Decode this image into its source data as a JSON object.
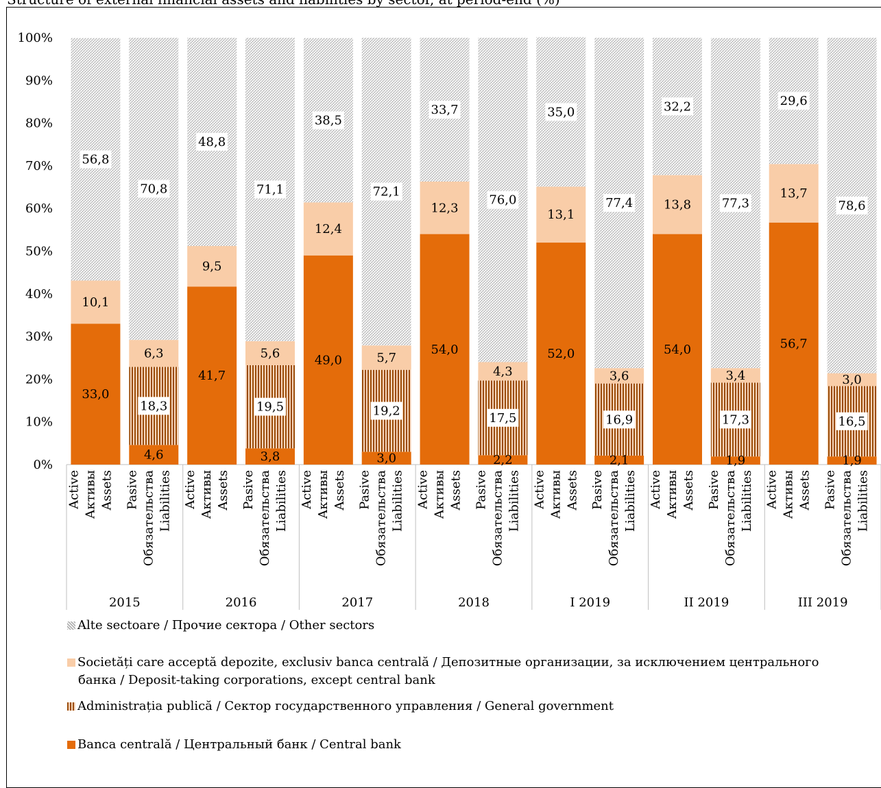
{
  "title": "Structure of external financial assets and liabilities by sector, at period-end (%)",
  "colors": {
    "central_bank": "#e46c0a",
    "general_government_stripe": "#9a4b06",
    "general_government_bg": "#f6d6bd",
    "deposit_taking": "#f9cda8",
    "other_sectors": "#d6d6d6"
  },
  "chart_data": {
    "type": "bar",
    "stacked": true,
    "ylim": [
      0,
      100
    ],
    "y_ticks": [
      "0%",
      "10%",
      "20%",
      "30%",
      "40%",
      "50%",
      "60%",
      "70%",
      "80%",
      "90%",
      "100%"
    ],
    "grid": false,
    "legend_position": "bottom",
    "groups": [
      "2015",
      "2016",
      "2017",
      "2018",
      "I 2019",
      "II 2019",
      "III 2019"
    ],
    "bar_labels": {
      "assets": [
        "Active",
        "Активы",
        "Assets"
      ],
      "liabilities": [
        "Pasive",
        "Обязательства",
        "Liabilities"
      ]
    },
    "categories": [
      "2015 Assets",
      "2015 Liabilities",
      "2016 Assets",
      "2016 Liabilities",
      "2017 Assets",
      "2017 Liabilities",
      "2018 Assets",
      "2018 Liabilities",
      "I 2019 Assets",
      "I 2019 Liabilities",
      "II 2019 Assets",
      "II 2019 Liabilities",
      "III 2019 Assets",
      "III 2019 Liabilities"
    ],
    "series": [
      {
        "name": "Banca centrală / Центральный банк / Central bank",
        "key": "central_bank",
        "values": [
          33.0,
          4.6,
          41.7,
          3.8,
          49.0,
          3.0,
          54.0,
          2.2,
          52.0,
          2.1,
          54.0,
          1.9,
          56.7,
          1.9
        ],
        "labels": [
          "33,0",
          "4,6",
          "41,7",
          "3,8",
          "49,0",
          "3,0",
          "54,0",
          "2,2",
          "52,0",
          "2,1",
          "54,0",
          "1,9",
          "56,7",
          "1,9"
        ]
      },
      {
        "name": "Administrația publică / Сектор государственного управления / General government",
        "key": "general_government",
        "values": [
          0,
          18.3,
          0,
          19.5,
          0,
          19.2,
          0,
          17.5,
          0,
          16.9,
          0,
          17.3,
          0,
          16.5
        ],
        "labels": [
          "",
          "18,3",
          "",
          "19,5",
          "",
          "19,2",
          "",
          "17,5",
          "",
          "16,9",
          "",
          "17,3",
          "",
          "16,5"
        ]
      },
      {
        "name": "Societăți care acceptă depozite, exclusiv banca centrală / Депозитные организации, за исключением центрального банка / Deposit-taking corporations, except central bank",
        "key": "deposit_taking",
        "values": [
          10.1,
          6.3,
          9.5,
          5.6,
          12.4,
          5.7,
          12.3,
          4.3,
          13.1,
          3.6,
          13.8,
          3.4,
          13.7,
          3.0
        ],
        "labels": [
          "10,1",
          "6,3",
          "9,5",
          "5,6",
          "12,4",
          "5,7",
          "12,3",
          "4,3",
          "13,1",
          "3,6",
          "13,8",
          "3,4",
          "13,7",
          "3,0"
        ]
      },
      {
        "name": "Alte sectoare / Прочие сектора / Other sectors",
        "key": "other_sectors",
        "values": [
          56.8,
          70.8,
          48.8,
          71.1,
          38.5,
          72.1,
          33.7,
          76.0,
          35.0,
          77.4,
          32.2,
          77.3,
          29.6,
          78.6
        ],
        "labels": [
          "56,8",
          "70,8",
          "48,8",
          "71,1",
          "38,5",
          "72,1",
          "33,7",
          "76,0",
          "35,0",
          "77,4",
          "32,2",
          "77,3",
          "29,6",
          "78,6"
        ]
      }
    ]
  },
  "legend": {
    "other_sectors": "Alte sectoare / Прочие сектора / Other sectors",
    "deposit_taking_line1": "Societăți care acceptă depozite, exclusiv banca centrală / Депозитные организации, за исключением центрального",
    "deposit_taking_line2": "банка / Deposit-taking corporations, except central bank",
    "general_government": "Administrația publică / Сектор государственного управления / General government",
    "central_bank": "Banca centrală / Центральный банк / Central bank"
  }
}
